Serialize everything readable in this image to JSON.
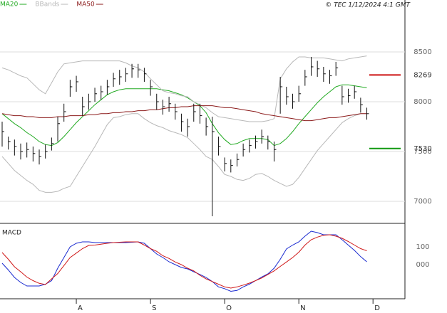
{
  "header": "© TEC 1/12/2024 4:1 GMT",
  "chart_data": [
    {
      "type": "stock",
      "ylim": [
        6786,
        9021
      ],
      "yticks": [
        7000,
        7500,
        8000,
        8500
      ],
      "grid": true,
      "high": [
        7800,
        7650,
        7620,
        7580,
        7590,
        7550,
        7520,
        7570,
        7640,
        7850,
        7980,
        8220,
        8260,
        8050,
        8080,
        8140,
        8160,
        8220,
        8290,
        8320,
        8340,
        8380,
        8380,
        8340,
        8220,
        8080,
        8020,
        8050,
        7980,
        7880,
        7830,
        7980,
        7980,
        7840,
        7850,
        7650,
        7440,
        7420,
        7480,
        7580,
        7620,
        7660,
        7720,
        7660,
        7600,
        8250,
        8150,
        8080,
        8160,
        8320,
        8450,
        8410,
        8350,
        8320,
        8400,
        8160,
        8130,
        8160,
        8040,
        7940,
        null
      ],
      "low": [
        7550,
        7520,
        7460,
        7420,
        7440,
        7400,
        7370,
        7430,
        7510,
        7600,
        7800,
        8050,
        8100,
        7860,
        7920,
        8000,
        8020,
        8070,
        8150,
        8170,
        8200,
        8240,
        8240,
        8200,
        8060,
        7920,
        7870,
        7900,
        7820,
        7700,
        7650,
        7800,
        7780,
        7660,
        6850,
        7460,
        7300,
        7290,
        7350,
        7450,
        7490,
        7530,
        7580,
        7520,
        7400,
        7880,
        7970,
        7930,
        8000,
        8160,
        8260,
        8250,
        8200,
        8180,
        8260,
        7970,
        7990,
        8030,
        7890,
        7820,
        null
      ],
      "close": [
        7700,
        7600,
        7550,
        7500,
        7520,
        7480,
        7450,
        7500,
        7580,
        7780,
        7900,
        8150,
        8200,
        7950,
        8000,
        8080,
        8100,
        8150,
        8230,
        8250,
        8280,
        8330,
        8320,
        8280,
        8150,
        8000,
        7950,
        7980,
        7900,
        7800,
        7750,
        7900,
        7860,
        7750,
        7700,
        7550,
        7380,
        7360,
        7420,
        7520,
        7560,
        7600,
        7650,
        7600,
        7520,
        8150,
        8050,
        8000,
        8080,
        8250,
        8350,
        8330,
        8280,
        8260,
        8340,
        8050,
        8060,
        8100,
        7970,
        7880,
        null
      ],
      "bar_color": "#111111",
      "series": [
        {
          "name": "MA20",
          "color": "#22aa22",
          "values": [
            7880,
            7830,
            7780,
            7740,
            7690,
            7650,
            7600,
            7570,
            7560,
            7590,
            7650,
            7720,
            7790,
            7850,
            7910,
            7970,
            8020,
            8070,
            8100,
            8120,
            8130,
            8130,
            8130,
            8130,
            8130,
            8130,
            8120,
            8110,
            8090,
            8070,
            8040,
            8000,
            7960,
            7890,
            7780,
            7690,
            7620,
            7570,
            7580,
            7610,
            7630,
            7630,
            7630,
            7620,
            7560,
            7580,
            7630,
            7700,
            7780,
            7850,
            7920,
            7990,
            8050,
            8100,
            8150,
            8170,
            8170,
            8160,
            8150,
            8140,
            null
          ]
        },
        {
          "name": "BBands",
          "color": "#b8b8b8",
          "values": [
            8340,
            8320,
            8290,
            8260,
            8240,
            8180,
            8120,
            8080,
            8190,
            8300,
            8380,
            8390,
            8400,
            8410,
            8410,
            8410,
            8410,
            8410,
            8410,
            8410,
            8390,
            8360,
            8340,
            8300,
            8230,
            8170,
            8110,
            8090,
            8080,
            8060,
            8050,
            8000,
            7970,
            7940,
            7890,
            7850,
            7840,
            7830,
            7820,
            7810,
            7800,
            7800,
            7800,
            7810,
            7830,
            8230,
            8330,
            8400,
            8450,
            8450,
            8440,
            8440,
            8440,
            8430,
            8420,
            8410,
            8430,
            8440,
            8450,
            8460,
            null
          ],
          "values_lower": [
            7450,
            7380,
            7310,
            7260,
            7210,
            7170,
            7110,
            7090,
            7090,
            7100,
            7130,
            7150,
            7250,
            7350,
            7450,
            7550,
            7660,
            7770,
            7840,
            7850,
            7870,
            7880,
            7880,
            7830,
            7790,
            7760,
            7740,
            7710,
            7690,
            7670,
            7640,
            7580,
            7520,
            7450,
            7420,
            7350,
            7270,
            7250,
            7220,
            7210,
            7230,
            7270,
            7280,
            7250,
            7210,
            7180,
            7150,
            7170,
            7240,
            7330,
            7420,
            7510,
            7580,
            7650,
            7720,
            7790,
            7830,
            7860,
            7880,
            7880,
            null
          ]
        },
        {
          "name": "MA50",
          "color": "#8b1a1a",
          "values": [
            7880,
            7870,
            7860,
            7860,
            7850,
            7850,
            7840,
            7840,
            7840,
            7850,
            7850,
            7860,
            7860,
            7860,
            7870,
            7870,
            7880,
            7880,
            7890,
            7890,
            7900,
            7900,
            7910,
            7910,
            7920,
            7920,
            7930,
            7940,
            7940,
            7950,
            7950,
            7960,
            7960,
            7960,
            7960,
            7950,
            7940,
            7940,
            7930,
            7920,
            7910,
            7900,
            7880,
            7870,
            7860,
            7850,
            7840,
            7830,
            7820,
            7810,
            7810,
            7820,
            7830,
            7840,
            7840,
            7850,
            7860,
            7870,
            7880,
            7880,
            null
          ]
        }
      ],
      "levels": [
        {
          "value": 8269,
          "color": "#cc1111"
        },
        {
          "value": 7530,
          "color": "#119911"
        }
      ]
    },
    {
      "type": "line",
      "title": "MACD",
      "categories": [
        null,
        null,
        null,
        null,
        null,
        null,
        null,
        null,
        null,
        null,
        null,
        null,
        "A",
        null,
        null,
        null,
        null,
        null,
        null,
        null,
        null,
        null,
        null,
        null,
        "S",
        null,
        null,
        null,
        null,
        null,
        null,
        null,
        null,
        null,
        null,
        null,
        "O",
        null,
        null,
        null,
        null,
        null,
        null,
        null,
        null,
        null,
        null,
        null,
        "N",
        null,
        null,
        null,
        null,
        null,
        null,
        null,
        null,
        null,
        null,
        null,
        "D"
      ],
      "ylim": [
        -192,
        224
      ],
      "yticks": [
        100,
        {
          "value": 0,
          "label": "000"
        }
      ],
      "series": [
        {
          "color": "#1a2ad0",
          "values": [
            8,
            -30,
            -72,
            -100,
            -120,
            -120,
            -120,
            -110,
            -90,
            -20,
            40,
            100,
            120,
            128,
            128,
            124,
            124,
            124,
            124,
            124,
            124,
            126,
            128,
            120,
            90,
            60,
            40,
            16,
            0,
            -16,
            -24,
            -40,
            -55,
            -72,
            -95,
            -125,
            -135,
            -150,
            -145,
            -125,
            -110,
            -90,
            -70,
            -52,
            -20,
            30,
            88,
            110,
            128,
            160,
            188,
            180,
            168,
            168,
            168,
            140,
            110,
            80,
            45,
            16,
            null
          ]
        },
        {
          "color": "#d01a1a",
          "values": [
            68,
            30,
            -12,
            -40,
            -70,
            -90,
            -105,
            -112,
            -80,
            -50,
            -5,
            40,
            65,
            90,
            108,
            110,
            115,
            120,
            124,
            126,
            128,
            128,
            128,
            110,
            90,
            75,
            50,
            35,
            15,
            0,
            -20,
            -35,
            -60,
            -80,
            -95,
            -110,
            -125,
            -132,
            -125,
            -115,
            -104,
            -90,
            -75,
            -55,
            -35,
            -10,
            15,
            40,
            70,
            110,
            140,
            155,
            165,
            168,
            160,
            148,
            130,
            110,
            90,
            78,
            null
          ]
        }
      ]
    }
  ]
}
